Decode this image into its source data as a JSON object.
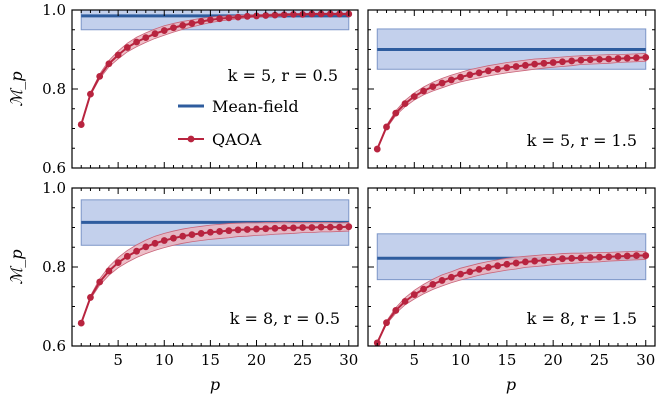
{
  "colors": {
    "mean_field_line": "#2e5c9e",
    "mean_field_band": "#c3d0ec",
    "mean_field_band_edge": "#7d96c8",
    "qaoa_line": "#b8243f",
    "qaoa_band": "#eab4be",
    "qaoa_band_edge": "#c96479"
  },
  "chart_data": {
    "type": "line",
    "layout": "2x2 grid",
    "legend": {
      "placement": "inside top-left panel, center-left",
      "entries": [
        "Mean-field",
        "QAOA"
      ]
    },
    "xlabel": "p",
    "ylabel": "ℳ_p",
    "xlim": [
      0,
      31
    ],
    "ylim": [
      0.6,
      1.0
    ],
    "xticks": [
      5,
      10,
      15,
      20,
      25,
      30
    ],
    "yticks": [
      0.6,
      0.8,
      1.0
    ],
    "ytick_labels": [
      "0.6",
      "0.8",
      "1.0"
    ],
    "x": [
      1,
      2,
      3,
      4,
      5,
      6,
      7,
      8,
      9,
      10,
      11,
      12,
      13,
      14,
      15,
      16,
      17,
      18,
      19,
      20,
      21,
      22,
      23,
      24,
      25,
      26,
      27,
      28,
      29,
      30
    ],
    "panels": [
      {
        "label": "k = 5, r = 0.5",
        "mean_field": {
          "value": 0.985,
          "band": [
            0.95,
            1.0
          ]
        },
        "qaoa": {
          "values": [
            0.71,
            0.787,
            0.832,
            0.864,
            0.886,
            0.905,
            0.919,
            0.93,
            0.94,
            0.948,
            0.955,
            0.961,
            0.966,
            0.971,
            0.975,
            0.978,
            0.98,
            0.982,
            0.984,
            0.985,
            0.986,
            0.987,
            0.988,
            0.989,
            0.989,
            0.99,
            0.99,
            0.99,
            0.99,
            0.99
          ],
          "spread": [
            0.0,
            0.003,
            0.006,
            0.008,
            0.01,
            0.011,
            0.012,
            0.012,
            0.012,
            0.012,
            0.011,
            0.01,
            0.009,
            0.008,
            0.007,
            0.006,
            0.005,
            0.004,
            0.004,
            0.003,
            0.003,
            0.003,
            0.003,
            0.002,
            0.002,
            0.002,
            0.002,
            0.002,
            0.002,
            0.002
          ]
        }
      },
      {
        "label": "k = 5, r = 1.5",
        "mean_field": {
          "value": 0.9,
          "band": [
            0.85,
            0.952
          ]
        },
        "qaoa": {
          "values": [
            0.648,
            0.704,
            0.739,
            0.763,
            0.781,
            0.795,
            0.806,
            0.815,
            0.823,
            0.83,
            0.836,
            0.841,
            0.846,
            0.85,
            0.854,
            0.857,
            0.86,
            0.863,
            0.865,
            0.867,
            0.869,
            0.871,
            0.873,
            0.874,
            0.875,
            0.876,
            0.877,
            0.878,
            0.879,
            0.88
          ],
          "spread": [
            0.0,
            0.004,
            0.006,
            0.008,
            0.009,
            0.01,
            0.011,
            0.012,
            0.012,
            0.012,
            0.013,
            0.013,
            0.013,
            0.013,
            0.013,
            0.013,
            0.013,
            0.013,
            0.012,
            0.012,
            0.012,
            0.012,
            0.011,
            0.011,
            0.011,
            0.011,
            0.01,
            0.01,
            0.01,
            0.01
          ]
        }
      },
      {
        "label": "k = 8, r = 0.5",
        "mean_field": {
          "value": 0.913,
          "band": [
            0.855,
            0.97
          ]
        },
        "qaoa": {
          "values": [
            0.658,
            0.723,
            0.762,
            0.79,
            0.811,
            0.827,
            0.84,
            0.851,
            0.86,
            0.867,
            0.873,
            0.878,
            0.882,
            0.885,
            0.888,
            0.89,
            0.892,
            0.894,
            0.895,
            0.896,
            0.897,
            0.898,
            0.899,
            0.899,
            0.9,
            0.9,
            0.901,
            0.901,
            0.901,
            0.902
          ],
          "spread": [
            0.0,
            0.004,
            0.008,
            0.011,
            0.013,
            0.015,
            0.016,
            0.017,
            0.018,
            0.018,
            0.018,
            0.018,
            0.018,
            0.018,
            0.018,
            0.018,
            0.018,
            0.017,
            0.017,
            0.016,
            0.016,
            0.015,
            0.015,
            0.014,
            0.013,
            0.013,
            0.012,
            0.012,
            0.011,
            0.011
          ]
        }
      },
      {
        "label": "k = 8, r = 1.5",
        "mean_field": {
          "value": 0.822,
          "band": [
            0.768,
            0.884
          ]
        },
        "qaoa": {
          "values": [
            0.608,
            0.659,
            0.69,
            0.713,
            0.73,
            0.744,
            0.756,
            0.766,
            0.774,
            0.782,
            0.788,
            0.794,
            0.799,
            0.803,
            0.807,
            0.81,
            0.813,
            0.815,
            0.817,
            0.819,
            0.821,
            0.822,
            0.823,
            0.824,
            0.825,
            0.826,
            0.827,
            0.828,
            0.829,
            0.829
          ],
          "spread": [
            0.0,
            0.004,
            0.007,
            0.009,
            0.011,
            0.012,
            0.013,
            0.014,
            0.014,
            0.015,
            0.015,
            0.015,
            0.015,
            0.015,
            0.015,
            0.015,
            0.014,
            0.014,
            0.014,
            0.013,
            0.013,
            0.013,
            0.012,
            0.012,
            0.012,
            0.011,
            0.011,
            0.011,
            0.011,
            0.01
          ]
        }
      }
    ]
  }
}
